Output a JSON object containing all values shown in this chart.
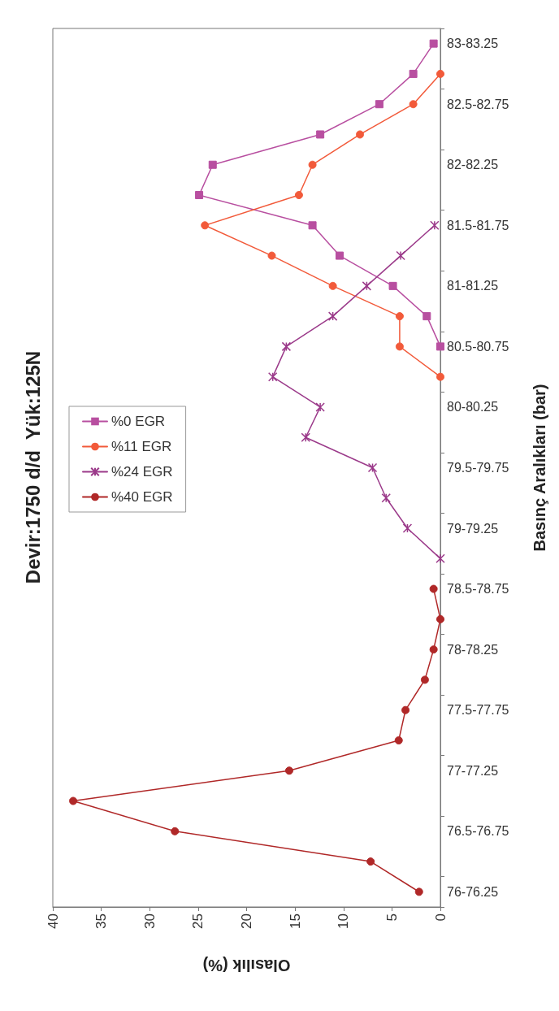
{
  "chart_data": {
    "type": "line",
    "orientation": "horizontal",
    "title": "Devir:1750 d/d  Yük:125N",
    "xlabel": "Olasılık (%)",
    "ylabel": "Basınç Aralıkları (bar)",
    "categories": [
      "83-83.25",
      null,
      "82.5-82.75",
      null,
      "82-82.25",
      null,
      "81.5-81.75",
      null,
      "81-81.25",
      null,
      "80.5-80.75",
      null,
      "80-80.25",
      null,
      "79.5-79.75",
      null,
      "79-79.25",
      null,
      "78.5-78.75",
      null,
      "78-78.25",
      null,
      "77.5-77.75",
      null,
      "77-77.25",
      null,
      "76.5-76.75",
      null,
      "76-76.25"
    ],
    "series": [
      {
        "name": "%0 EGR",
        "color": "#b84fa0",
        "marker": "square",
        "values": [
          0.7,
          2.8,
          6.3,
          12.4,
          23.5,
          24.9,
          13.2,
          10.4,
          4.9,
          1.4,
          0,
          null,
          null,
          null,
          null,
          null,
          null,
          null,
          null,
          null,
          null,
          null,
          null,
          null,
          null,
          null,
          null,
          null,
          null
        ]
      },
      {
        "name": "%11 EGR",
        "color": "#f25a3a",
        "marker": "circle",
        "values": [
          null,
          0,
          2.8,
          8.3,
          13.2,
          14.6,
          24.3,
          17.4,
          11.1,
          4.2,
          4.2,
          0,
          null,
          null,
          null,
          null,
          null,
          null,
          null,
          null,
          null,
          null,
          null,
          null,
          null,
          null,
          null,
          null,
          null
        ]
      },
      {
        "name": "%24 EGR",
        "color": "#9b3a8a",
        "marker": "cross",
        "values": [
          null,
          null,
          null,
          null,
          null,
          null,
          0.6,
          4.1,
          7.6,
          11.1,
          15.9,
          17.3,
          12.4,
          13.9,
          7.0,
          5.6,
          3.4,
          0,
          null,
          null,
          null,
          null,
          null,
          null,
          null,
          null,
          null,
          null,
          null
        ]
      },
      {
        "name": "%40 EGR",
        "color": "#b02828",
        "marker": "circle",
        "values": [
          null,
          null,
          null,
          null,
          null,
          null,
          null,
          null,
          null,
          null,
          null,
          null,
          null,
          null,
          null,
          null,
          null,
          null,
          0.7,
          0,
          0.7,
          1.6,
          3.6,
          4.3,
          15.6,
          37.9,
          27.4,
          7.2,
          2.2
        ]
      }
    ],
    "xlim": [
      40,
      0
    ],
    "xticks": [
      40,
      35,
      30,
      25,
      20,
      15,
      10,
      5,
      0
    ],
    "grid": false,
    "legend": "left",
    "line_style": "solid"
  }
}
